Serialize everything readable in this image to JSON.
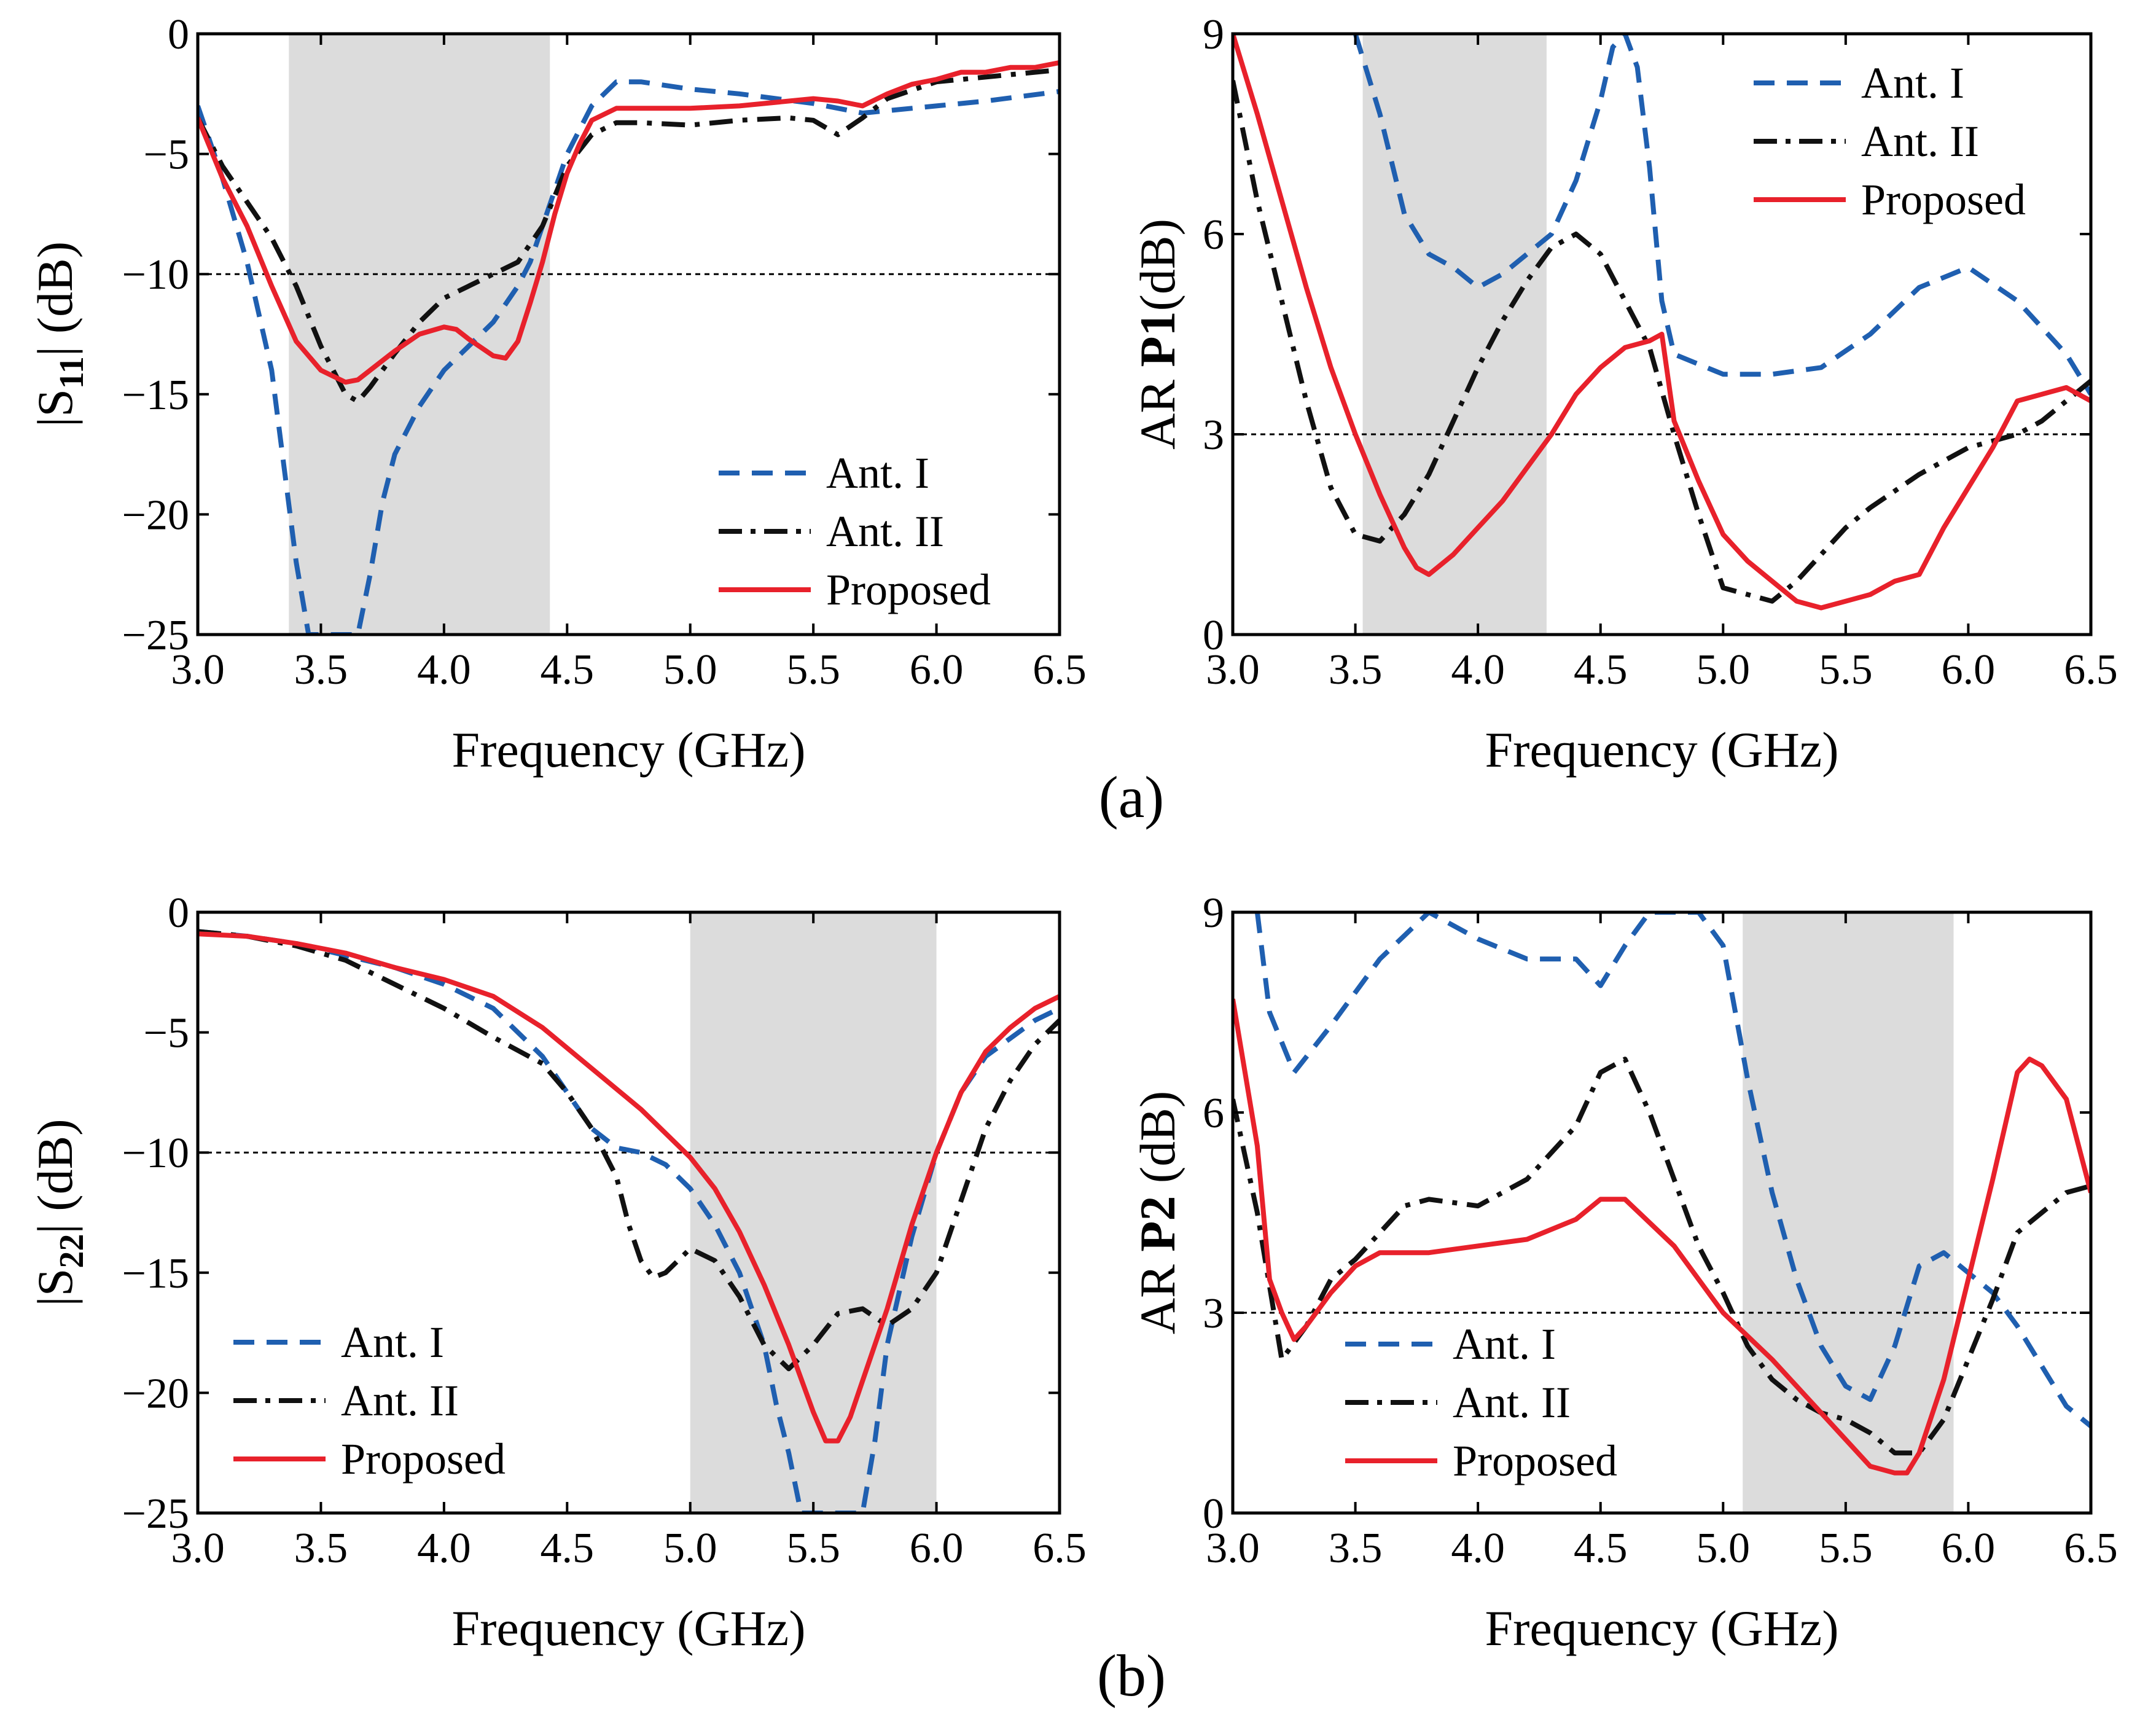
{
  "captions": {
    "top": "(a)",
    "bottom": "(b)"
  },
  "colors": {
    "ant1": "#1f5fb0",
    "ant2": "#111111",
    "proposed": "#e8212b",
    "band": "#dcdcdc"
  },
  "chart_data": [
    {
      "type": "line",
      "xlabel": "Frequency (GHz)",
      "ylabel": {
        "pre": "|S",
        "sub": "11",
        "post": "| (dB)"
      },
      "xlim": [
        3.0,
        6.5
      ],
      "ylim": [
        -25,
        0
      ],
      "xticks": [
        "3.0",
        "3.5",
        "4.0",
        "4.5",
        "5.0",
        "5.5",
        "6.0",
        "6.5"
      ],
      "yticks": [
        "0",
        "−5",
        "−10",
        "−15",
        "−20",
        "−25"
      ],
      "ytick_values": [
        0,
        -5,
        -10,
        -15,
        -20,
        -25
      ],
      "reference_line": -10,
      "shaded_band": [
        3.37,
        4.43
      ],
      "legend": {
        "position": "bottom-right"
      },
      "series": [
        {
          "name": "Ant. I",
          "style": "dashed",
          "color": "#1f5fb0",
          "x": [
            3.0,
            3.1,
            3.2,
            3.3,
            3.35,
            3.4,
            3.45,
            3.5,
            3.55,
            3.6,
            3.65,
            3.7,
            3.75,
            3.8,
            3.9,
            4.0,
            4.1,
            4.2,
            4.3,
            4.35,
            4.4,
            4.5,
            4.6,
            4.7,
            4.8,
            5.0,
            5.2,
            5.5,
            5.7,
            6.0,
            6.2,
            6.5
          ],
          "y": [
            -3.0,
            -6.0,
            -9.5,
            -14.0,
            -18.0,
            -22.0,
            -25.0,
            -25.0,
            -25.0,
            -25.0,
            -25.0,
            -22.5,
            -19.5,
            -17.5,
            -15.5,
            -14.0,
            -13.0,
            -12.0,
            -10.5,
            -9.5,
            -8.0,
            -5.0,
            -3.0,
            -2.0,
            -2.0,
            -2.3,
            -2.5,
            -2.9,
            -3.3,
            -3.0,
            -2.8,
            -2.4
          ]
        },
        {
          "name": "Ant. II",
          "style": "dashdot",
          "color": "#111111",
          "x": [
            3.0,
            3.1,
            3.2,
            3.3,
            3.4,
            3.5,
            3.6,
            3.65,
            3.7,
            3.8,
            3.9,
            4.0,
            4.1,
            4.2,
            4.3,
            4.4,
            4.5,
            4.6,
            4.7,
            4.8,
            5.0,
            5.2,
            5.4,
            5.5,
            5.6,
            5.7,
            5.8,
            6.0,
            6.2,
            6.5
          ],
          "y": [
            -3.5,
            -5.5,
            -7.0,
            -8.5,
            -10.5,
            -13.0,
            -15.0,
            -15.3,
            -14.7,
            -13.3,
            -12.0,
            -11.0,
            -10.5,
            -10.0,
            -9.5,
            -8.0,
            -5.5,
            -4.2,
            -3.7,
            -3.7,
            -3.8,
            -3.6,
            -3.5,
            -3.6,
            -4.2,
            -3.5,
            -2.7,
            -2.0,
            -1.8,
            -1.5
          ]
        },
        {
          "name": "Proposed",
          "style": "solid",
          "color": "#e8212b",
          "x": [
            3.0,
            3.1,
            3.2,
            3.3,
            3.4,
            3.5,
            3.6,
            3.65,
            3.7,
            3.8,
            3.9,
            4.0,
            4.05,
            4.1,
            4.2,
            4.25,
            4.3,
            4.35,
            4.4,
            4.45,
            4.5,
            4.55,
            4.6,
            4.7,
            4.8,
            5.0,
            5.2,
            5.5,
            5.6,
            5.7,
            5.8,
            5.9,
            6.0,
            6.1,
            6.2,
            6.3,
            6.4,
            6.5
          ],
          "y": [
            -3.5,
            -6.0,
            -8.0,
            -10.5,
            -12.8,
            -14.0,
            -14.5,
            -14.4,
            -14.0,
            -13.2,
            -12.5,
            -12.2,
            -12.3,
            -12.7,
            -13.4,
            -13.5,
            -12.8,
            -11.2,
            -9.5,
            -7.5,
            -5.8,
            -4.6,
            -3.6,
            -3.1,
            -3.1,
            -3.1,
            -3.0,
            -2.7,
            -2.8,
            -3.0,
            -2.5,
            -2.1,
            -1.9,
            -1.6,
            -1.6,
            -1.4,
            -1.4,
            -1.2
          ]
        }
      ]
    },
    {
      "type": "line",
      "xlabel": "Frequency (GHz)",
      "ylabel": {
        "pre": "AR ",
        "bold": "P1",
        "post": "(dB)"
      },
      "xlim": [
        3.0,
        6.5
      ],
      "ylim": [
        0,
        9
      ],
      "xticks": [
        "3.0",
        "3.5",
        "4.0",
        "4.5",
        "5.0",
        "5.5",
        "6.0",
        "6.5"
      ],
      "yticks": [
        "0",
        "3",
        "6",
        "9"
      ],
      "ytick_values": [
        0,
        3,
        6,
        9
      ],
      "reference_line": 3,
      "shaded_band": [
        3.53,
        4.28
      ],
      "legend": {
        "position": "top-right"
      },
      "series": [
        {
          "name": "Ant. I",
          "style": "dashed",
          "color": "#1f5fb0",
          "x": [
            3.5,
            3.6,
            3.7,
            3.8,
            3.9,
            4.0,
            4.1,
            4.2,
            4.3,
            4.4,
            4.5,
            4.55,
            4.6,
            4.65,
            4.7,
            4.75,
            4.8,
            5.0,
            5.2,
            5.4,
            5.6,
            5.8,
            6.0,
            6.2,
            6.4,
            6.5
          ],
          "y": [
            9.0,
            7.8,
            6.3,
            5.7,
            5.5,
            5.2,
            5.4,
            5.7,
            6.0,
            6.8,
            8.0,
            8.8,
            9.0,
            8.5,
            7.0,
            5.0,
            4.2,
            3.9,
            3.9,
            4.0,
            4.5,
            5.2,
            5.5,
            5.0,
            4.2,
            3.6
          ]
        },
        {
          "name": "Ant. II",
          "style": "dashdot",
          "color": "#111111",
          "x": [
            3.0,
            3.1,
            3.2,
            3.3,
            3.4,
            3.5,
            3.6,
            3.7,
            3.8,
            3.9,
            4.0,
            4.1,
            4.2,
            4.3,
            4.4,
            4.5,
            4.6,
            4.7,
            4.8,
            4.9,
            5.0,
            5.1,
            5.2,
            5.3,
            5.4,
            5.5,
            5.6,
            5.8,
            6.0,
            6.2,
            6.3,
            6.4,
            6.5
          ],
          "y": [
            8.3,
            6.5,
            5.0,
            3.5,
            2.2,
            1.5,
            1.4,
            1.8,
            2.4,
            3.2,
            4.0,
            4.7,
            5.3,
            5.8,
            6.0,
            5.7,
            5.0,
            4.3,
            3.0,
            1.8,
            0.7,
            0.6,
            0.5,
            0.8,
            1.2,
            1.6,
            1.9,
            2.4,
            2.8,
            3.0,
            3.2,
            3.5,
            3.8
          ]
        },
        {
          "name": "Proposed",
          "style": "solid",
          "color": "#e8212b",
          "x": [
            3.0,
            3.1,
            3.2,
            3.3,
            3.4,
            3.5,
            3.6,
            3.7,
            3.75,
            3.8,
            3.9,
            4.0,
            4.1,
            4.2,
            4.3,
            4.4,
            4.5,
            4.6,
            4.7,
            4.75,
            4.8,
            4.9,
            5.0,
            5.1,
            5.2,
            5.3,
            5.4,
            5.5,
            5.6,
            5.7,
            5.8,
            5.9,
            6.0,
            6.1,
            6.2,
            6.3,
            6.4,
            6.5
          ],
          "y": [
            9.0,
            7.8,
            6.5,
            5.2,
            4.0,
            3.0,
            2.1,
            1.3,
            1.0,
            0.9,
            1.2,
            1.6,
            2.0,
            2.5,
            3.0,
            3.6,
            4.0,
            4.3,
            4.4,
            4.5,
            3.2,
            2.3,
            1.5,
            1.1,
            0.8,
            0.5,
            0.4,
            0.5,
            0.6,
            0.8,
            0.9,
            1.6,
            2.2,
            2.8,
            3.5,
            3.6,
            3.7,
            3.5
          ]
        }
      ]
    },
    {
      "type": "line",
      "xlabel": "Frequency (GHz)",
      "ylabel": {
        "pre": "|S",
        "sub": "22",
        "post": "| (dB)"
      },
      "xlim": [
        3.0,
        6.5
      ],
      "ylim": [
        -25,
        0
      ],
      "xticks": [
        "3.0",
        "3.5",
        "4.0",
        "4.5",
        "5.0",
        "5.5",
        "6.0",
        "6.5"
      ],
      "yticks": [
        "0",
        "−5",
        "−10",
        "−15",
        "−20",
        "−25"
      ],
      "ytick_values": [
        0,
        -5,
        -10,
        -15,
        -20,
        -25
      ],
      "reference_line": -10,
      "shaded_band": [
        5.0,
        6.0
      ],
      "legend": {
        "position": "bottom-left"
      },
      "series": [
        {
          "name": "Ant. I",
          "style": "dashed",
          "color": "#1f5fb0",
          "x": [
            3.0,
            3.2,
            3.4,
            3.6,
            3.8,
            4.0,
            4.2,
            4.4,
            4.5,
            4.6,
            4.7,
            4.8,
            4.9,
            5.0,
            5.1,
            5.2,
            5.3,
            5.35,
            5.4,
            5.45,
            5.55,
            5.65,
            5.7,
            5.75,
            5.8,
            5.9,
            6.0,
            6.1,
            6.2,
            6.4,
            6.5
          ],
          "y": [
            -0.8,
            -1.0,
            -1.3,
            -1.8,
            -2.3,
            -3.0,
            -4.0,
            -6.0,
            -7.5,
            -9.0,
            -9.8,
            -10.0,
            -10.5,
            -11.5,
            -13.0,
            -15.0,
            -18.0,
            -20.5,
            -22.5,
            -25.0,
            -25.0,
            -25.0,
            -25.0,
            -22.0,
            -18.0,
            -13.5,
            -10.0,
            -7.5,
            -6.0,
            -4.5,
            -4.0
          ]
        },
        {
          "name": "Ant. II",
          "style": "dashdot",
          "color": "#111111",
          "x": [
            3.0,
            3.2,
            3.4,
            3.6,
            3.8,
            4.0,
            4.2,
            4.4,
            4.5,
            4.6,
            4.7,
            4.75,
            4.8,
            4.85,
            4.9,
            4.95,
            5.0,
            5.1,
            5.2,
            5.3,
            5.4,
            5.5,
            5.6,
            5.7,
            5.8,
            5.9,
            6.0,
            6.1,
            6.2,
            6.3,
            6.4,
            6.5
          ],
          "y": [
            -0.8,
            -1.0,
            -1.4,
            -2.0,
            -3.0,
            -4.0,
            -5.2,
            -6.3,
            -7.5,
            -9.0,
            -11.0,
            -13.0,
            -14.5,
            -15.2,
            -15.0,
            -14.5,
            -14.0,
            -14.5,
            -16.0,
            -18.0,
            -19.0,
            -18.0,
            -16.7,
            -16.5,
            -17.2,
            -16.5,
            -15.0,
            -12.0,
            -9.0,
            -7.0,
            -5.5,
            -4.5
          ]
        },
        {
          "name": "Proposed",
          "style": "solid",
          "color": "#e8212b",
          "x": [
            3.0,
            3.2,
            3.4,
            3.6,
            3.8,
            4.0,
            4.2,
            4.4,
            4.6,
            4.8,
            5.0,
            5.1,
            5.2,
            5.3,
            5.4,
            5.5,
            5.55,
            5.6,
            5.65,
            5.7,
            5.8,
            5.9,
            6.0,
            6.1,
            6.2,
            6.3,
            6.4,
            6.5
          ],
          "y": [
            -0.9,
            -1.0,
            -1.3,
            -1.7,
            -2.3,
            -2.8,
            -3.5,
            -4.8,
            -6.5,
            -8.2,
            -10.2,
            -11.5,
            -13.3,
            -15.5,
            -18.0,
            -20.8,
            -22.0,
            -22.0,
            -21.0,
            -19.5,
            -16.5,
            -13.0,
            -10.0,
            -7.5,
            -5.8,
            -4.8,
            -4.0,
            -3.5
          ]
        }
      ]
    },
    {
      "type": "line",
      "xlabel": "Frequency (GHz)",
      "ylabel": {
        "pre": "AR ",
        "bold": "P2",
        "post": " (dB)"
      },
      "xlim": [
        3.0,
        6.5
      ],
      "ylim": [
        0,
        9
      ],
      "xticks": [
        "3.0",
        "3.5",
        "4.0",
        "4.5",
        "5.0",
        "5.5",
        "6.0",
        "6.5"
      ],
      "yticks": [
        "0",
        "3",
        "6",
        "9"
      ],
      "ytick_values": [
        0,
        3,
        6,
        9
      ],
      "reference_line": 3,
      "shaded_band": [
        5.08,
        5.94
      ],
      "legend": {
        "position": "bottom-left"
      },
      "series": [
        {
          "name": "Ant. I",
          "style": "dashed",
          "color": "#1f5fb0",
          "x": [
            3.1,
            3.15,
            3.25,
            3.4,
            3.6,
            3.8,
            4.0,
            4.2,
            4.4,
            4.5,
            4.6,
            4.7,
            4.8,
            4.9,
            5.0,
            5.1,
            5.2,
            5.3,
            5.4,
            5.5,
            5.6,
            5.7,
            5.8,
            5.9,
            6.0,
            6.1,
            6.2,
            6.3,
            6.4,
            6.5
          ],
          "y": [
            9.0,
            7.5,
            6.6,
            7.3,
            8.3,
            9.0,
            8.6,
            8.3,
            8.3,
            7.9,
            8.5,
            9.0,
            9.0,
            9.0,
            8.5,
            6.5,
            4.8,
            3.5,
            2.5,
            1.9,
            1.7,
            2.5,
            3.7,
            3.9,
            3.6,
            3.3,
            2.8,
            2.2,
            1.6,
            1.3
          ]
        },
        {
          "name": "Ant. II",
          "style": "dashdot",
          "color": "#111111",
          "x": [
            3.0,
            3.1,
            3.2,
            3.3,
            3.4,
            3.5,
            3.6,
            3.7,
            3.8,
            4.0,
            4.2,
            4.4,
            4.5,
            4.6,
            4.7,
            4.8,
            4.9,
            5.0,
            5.1,
            5.2,
            5.3,
            5.4,
            5.5,
            5.6,
            5.7,
            5.8,
            5.9,
            6.0,
            6.1,
            6.2,
            6.3,
            6.4,
            6.5
          ],
          "y": [
            6.2,
            4.5,
            2.3,
            2.8,
            3.5,
            3.8,
            4.2,
            4.6,
            4.7,
            4.6,
            5.0,
            5.8,
            6.6,
            6.8,
            6.0,
            5.0,
            4.0,
            3.3,
            2.5,
            2.0,
            1.7,
            1.5,
            1.4,
            1.2,
            0.9,
            0.9,
            1.4,
            2.3,
            3.2,
            4.2,
            4.5,
            4.8,
            4.9
          ]
        },
        {
          "name": "Proposed",
          "style": "solid",
          "color": "#e8212b",
          "x": [
            3.0,
            3.1,
            3.15,
            3.2,
            3.25,
            3.3,
            3.4,
            3.5,
            3.6,
            3.8,
            4.0,
            4.2,
            4.4,
            4.5,
            4.6,
            4.8,
            5.0,
            5.2,
            5.4,
            5.5,
            5.6,
            5.7,
            5.75,
            5.8,
            5.9,
            6.0,
            6.1,
            6.2,
            6.25,
            6.3,
            6.4,
            6.5
          ],
          "y": [
            7.7,
            5.5,
            3.5,
            3.0,
            2.6,
            2.8,
            3.3,
            3.7,
            3.9,
            3.9,
            4.0,
            4.1,
            4.4,
            4.7,
            4.7,
            4.0,
            3.0,
            2.3,
            1.5,
            1.1,
            0.7,
            0.6,
            0.6,
            0.9,
            2.0,
            3.5,
            5.0,
            6.6,
            6.8,
            6.7,
            6.2,
            4.8
          ]
        }
      ]
    }
  ]
}
